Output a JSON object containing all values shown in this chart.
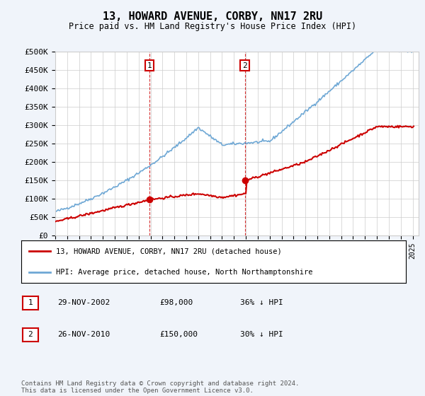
{
  "title": "13, HOWARD AVENUE, CORBY, NN17 2RU",
  "subtitle": "Price paid vs. HM Land Registry's House Price Index (HPI)",
  "ylim": [
    0,
    500000
  ],
  "yticks": [
    0,
    50000,
    100000,
    150000,
    200000,
    250000,
    300000,
    350000,
    400000,
    450000,
    500000
  ],
  "xlim_start": 1995.0,
  "xlim_end": 2025.5,
  "hpi_color": "#6fa8d5",
  "price_color": "#cc0000",
  "transaction1_x": 2002.91,
  "transaction1_y": 98000,
  "transaction1_label": "1",
  "transaction2_x": 2010.91,
  "transaction2_y": 150000,
  "transaction2_label": "2",
  "legend_entries": [
    "13, HOWARD AVENUE, CORBY, NN17 2RU (detached house)",
    "HPI: Average price, detached house, North Northamptonshire"
  ],
  "table_rows": [
    [
      "1",
      "29-NOV-2002",
      "£98,000",
      "36% ↓ HPI"
    ],
    [
      "2",
      "26-NOV-2010",
      "£150,000",
      "30% ↓ HPI"
    ]
  ],
  "footnote": "Contains HM Land Registry data © Crown copyright and database right 2024.\nThis data is licensed under the Open Government Licence v3.0.",
  "background_color": "#f0f4fa",
  "plot_bg_color": "#ffffff"
}
